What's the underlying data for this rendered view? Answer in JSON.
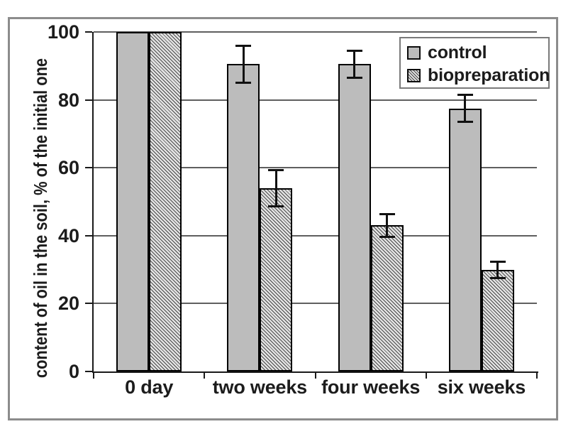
{
  "chart_data": {
    "type": "bar",
    "title": "",
    "xlabel": "",
    "ylabel": "content of oil in the soil, % of the initial one",
    "categories": [
      "0 day",
      "two weeks",
      "four weeks",
      "six weeks"
    ],
    "series": [
      {
        "name": "control",
        "pattern": "solid-gray",
        "values": [
          100,
          90.5,
          90.5,
          77.5
        ],
        "errors": [
          0,
          5.5,
          4,
          4
        ]
      },
      {
        "name": "biopreparation",
        "pattern": "diagonal-hatch",
        "values": [
          100,
          54,
          43,
          30
        ],
        "errors": [
          0,
          5.5,
          3.5,
          2.5
        ]
      }
    ],
    "ylim": [
      0,
      100
    ],
    "yticks": [
      0,
      20,
      40,
      60,
      80,
      100
    ],
    "grid": true,
    "error_bars": true,
    "legend_position": "top-right",
    "colors": {
      "control_fill": "#bcbcbc",
      "hatch_line": "#4a4a4a",
      "hatch_bg": "#e2e2e2",
      "bar_border": "#000000",
      "gridline": "#5f5f5f",
      "axis": "#1a1a1a",
      "text": "#1c1c1c",
      "error_bar": "#111111",
      "frame_border": "#8c8c8c",
      "legend_border": "#7a7a7a"
    }
  }
}
